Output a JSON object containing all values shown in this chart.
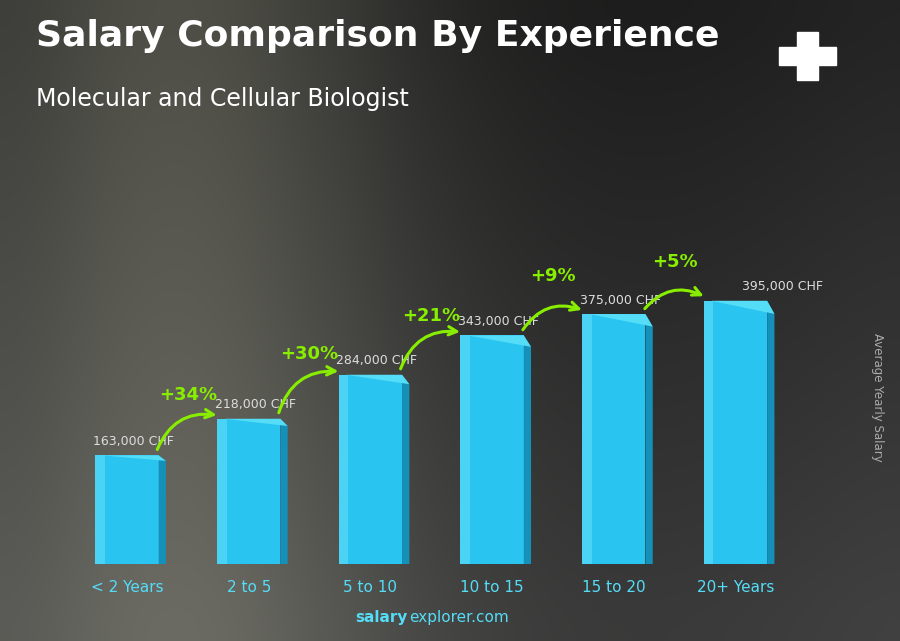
{
  "title": "Salary Comparison By Experience",
  "subtitle": "Molecular and Cellular Biologist",
  "categories": [
    "< 2 Years",
    "2 to 5",
    "5 to 10",
    "10 to 15",
    "15 to 20",
    "20+ Years"
  ],
  "values": [
    163000,
    218000,
    284000,
    343000,
    375000,
    395000
  ],
  "value_labels": [
    "163,000 CHF",
    "218,000 CHF",
    "284,000 CHF",
    "343,000 CHF",
    "375,000 CHF",
    "395,000 CHF"
  ],
  "pct_labels": [
    "+34%",
    "+30%",
    "+21%",
    "+9%",
    "+5%"
  ],
  "bar_face_color": "#29c5f0",
  "bar_side_color": "#1590b8",
  "bar_top_color": "#55ddf8",
  "bar_highlight": "#80eaff",
  "bg_color": "#3a3a3a",
  "title_color": "#ffffff",
  "subtitle_color": "#ffffff",
  "pct_color": "#88ee00",
  "arrow_color": "#88ee00",
  "value_color": "#dddddd",
  "xlabel_color": "#55ddf8",
  "ylabel": "Average Yearly Salary",
  "watermark_bold": "salary",
  "watermark_regular": "explorer.com",
  "ylim": [
    0,
    500000
  ],
  "title_fontsize": 26,
  "subtitle_fontsize": 17,
  "flag_color": "#cc1122",
  "watermark_color": "#55ddf8"
}
